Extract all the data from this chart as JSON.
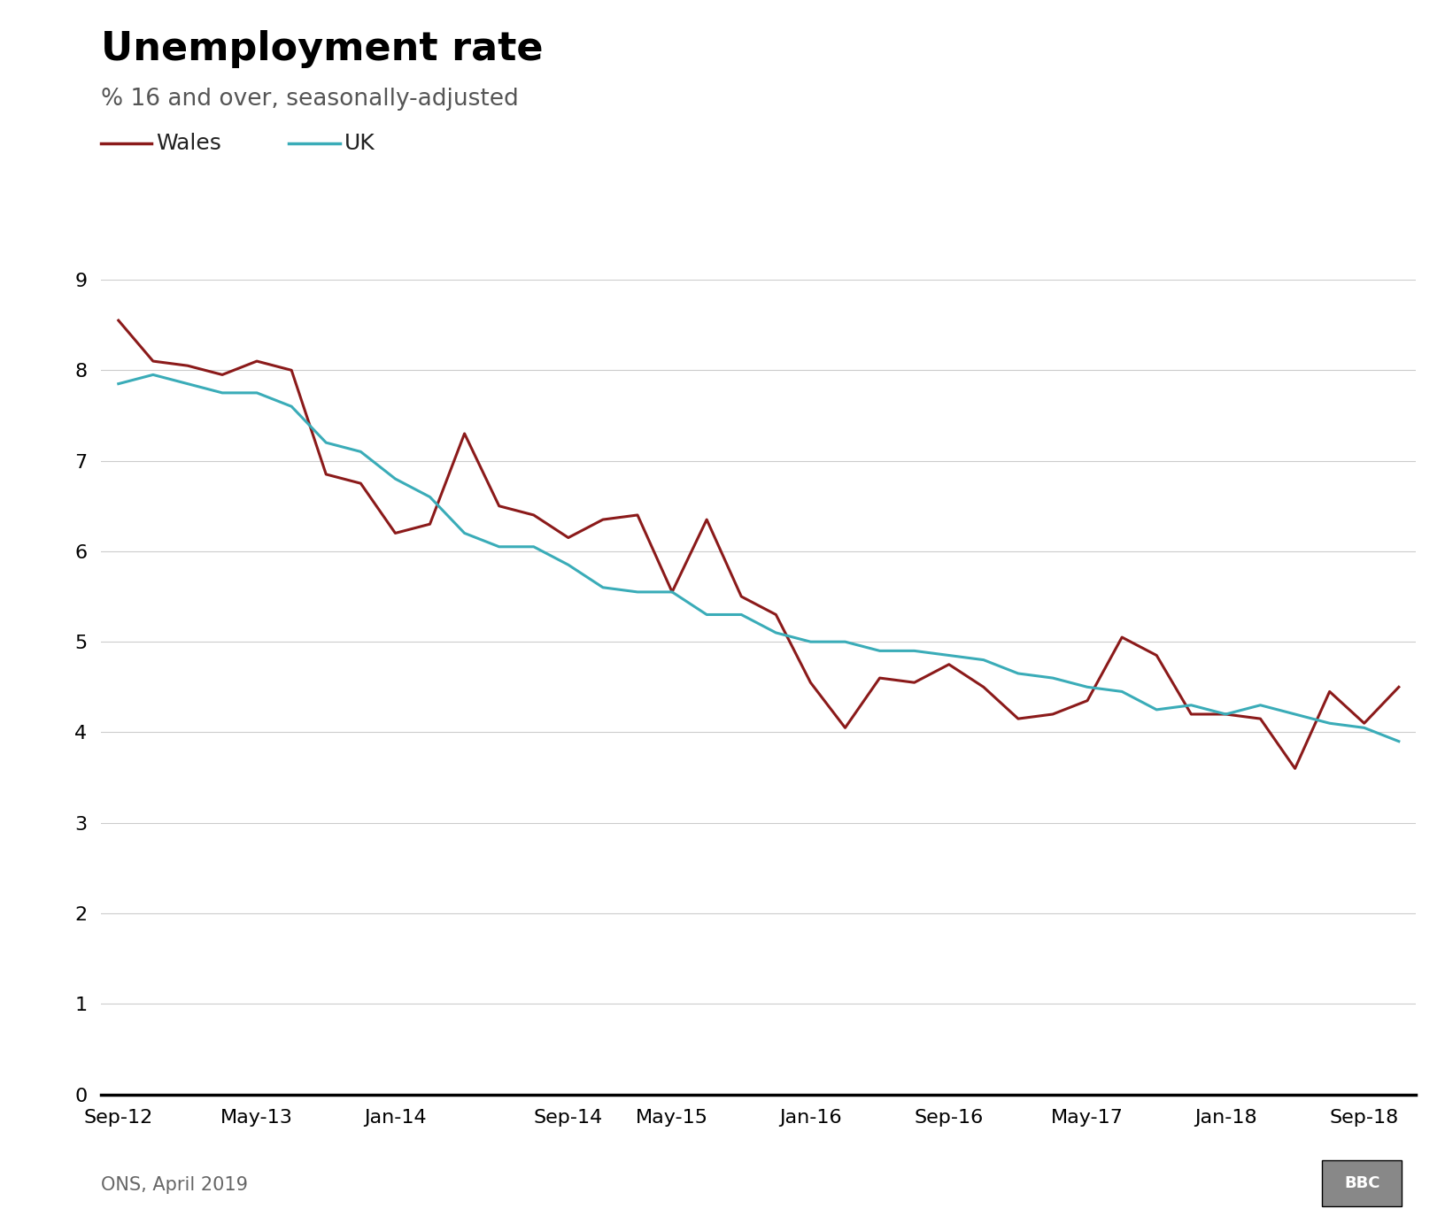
{
  "title": "Unemployment rate",
  "subtitle": "% 16 and over, seasonally-adjusted",
  "source": "ONS, April 2019",
  "wales_color": "#8B1A1A",
  "uk_color": "#3AACB8",
  "background_color": "#FFFFFF",
  "ylim": [
    0,
    9
  ],
  "yticks": [
    0,
    1,
    2,
    3,
    4,
    5,
    6,
    7,
    8,
    9
  ],
  "wales_values": [
    8.55,
    8.1,
    8.05,
    7.95,
    8.1,
    8.0,
    6.85,
    6.75,
    6.2,
    6.3,
    7.3,
    6.5,
    6.4,
    6.15,
    6.35,
    6.4,
    5.55,
    6.35,
    5.5,
    5.3,
    4.55,
    4.05,
    4.6,
    4.55,
    4.75,
    4.5,
    4.15,
    4.2,
    4.35,
    5.05,
    4.85,
    4.2,
    4.2,
    4.15,
    3.6,
    4.45,
    4.1,
    4.5
  ],
  "uk_values": [
    7.85,
    7.95,
    7.85,
    7.75,
    7.75,
    7.6,
    7.2,
    7.1,
    6.8,
    6.6,
    6.2,
    6.05,
    6.05,
    5.85,
    5.6,
    5.55,
    5.55,
    5.3,
    5.3,
    5.1,
    5.0,
    5.0,
    4.9,
    4.9,
    4.85,
    4.8,
    4.65,
    4.6,
    4.5,
    4.45,
    4.25,
    4.3,
    4.2,
    4.3,
    4.2,
    4.1,
    4.05,
    3.9
  ],
  "xtick_labels": [
    "Sep-12",
    "May-13",
    "Jan-14",
    "Sep-14",
    "May-15",
    "Jan-16",
    "Sep-16",
    "May-17",
    "Jan-18",
    "Sep-18"
  ],
  "xtick_positions": [
    0,
    4,
    8,
    13,
    16,
    20,
    24,
    28,
    32,
    36
  ],
  "n_points": 38,
  "legend_wales": "Wales",
  "legend_uk": "UK",
  "bbc_label": "BBC"
}
